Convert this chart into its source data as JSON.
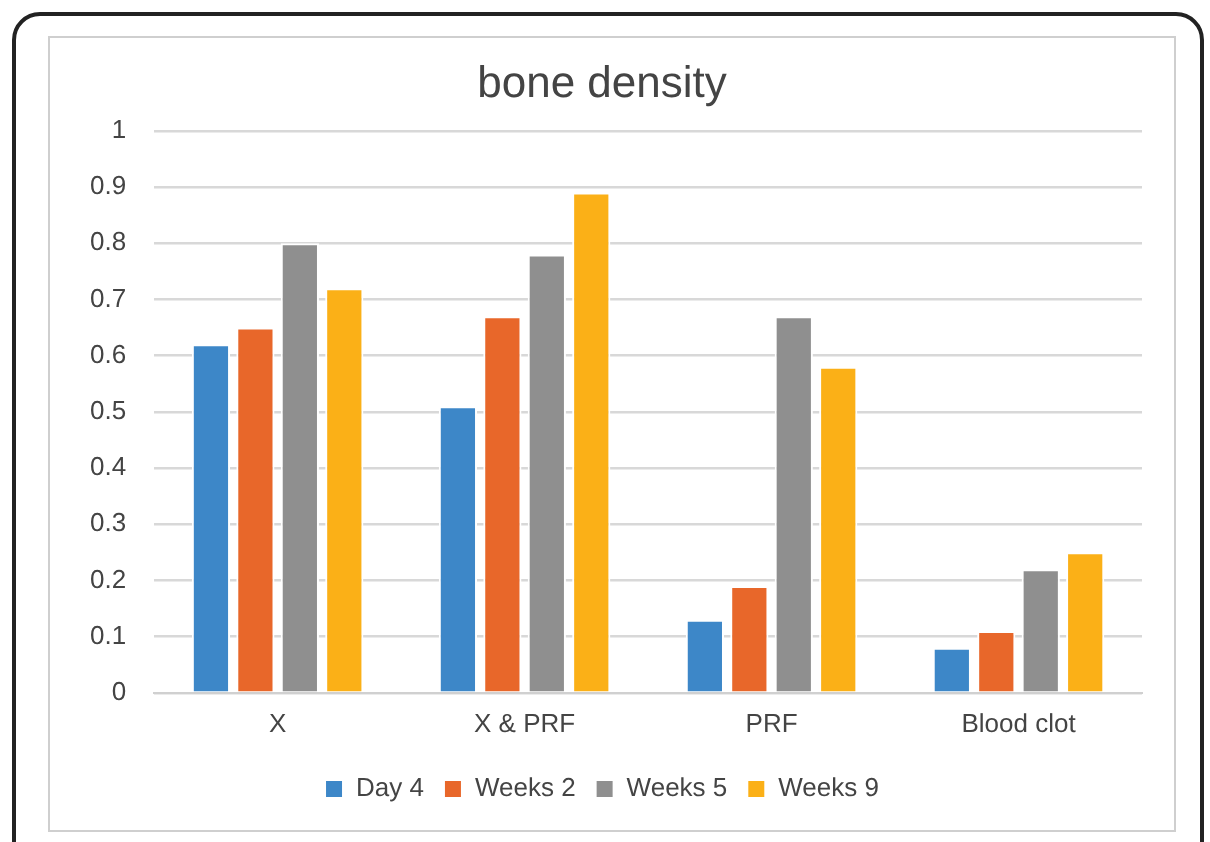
{
  "chart_data": {
    "type": "bar",
    "title": "bone density",
    "categories": [
      "X",
      "X & PRF",
      "PRF",
      "Blood clot"
    ],
    "series": [
      {
        "name": "Day 4",
        "color": "#3d87c8",
        "values": [
          0.62,
          0.51,
          0.13,
          0.08
        ]
      },
      {
        "name": "Weeks 2",
        "color": "#e8672a",
        "values": [
          0.65,
          0.67,
          0.19,
          0.11
        ]
      },
      {
        "name": "Weeks 5",
        "color": "#8f8f8f",
        "values": [
          0.8,
          0.78,
          0.67,
          0.22
        ]
      },
      {
        "name": "Weeks 9",
        "color": "#fbb017",
        "values": [
          0.72,
          0.89,
          0.58,
          0.25
        ]
      }
    ],
    "ylim": [
      0,
      1
    ],
    "yticks": [
      0,
      0.1,
      0.2,
      0.3,
      0.4,
      0.5,
      0.6,
      0.7,
      0.8,
      0.9,
      1
    ],
    "grid": "y",
    "legend": "bottom"
  }
}
